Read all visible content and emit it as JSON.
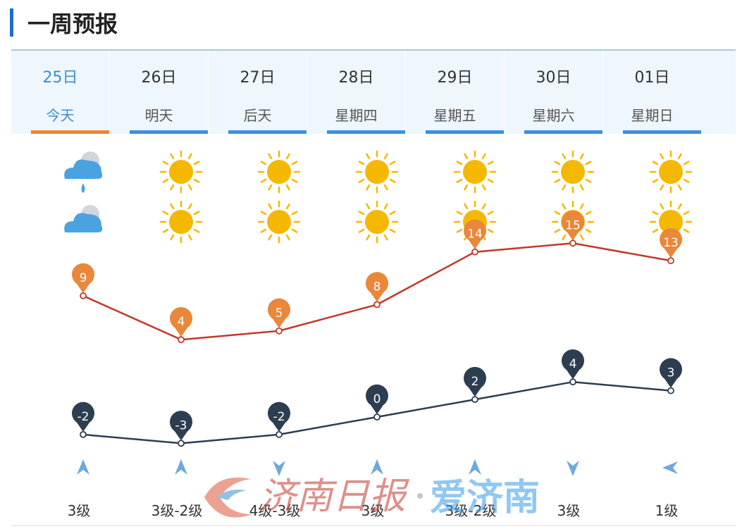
{
  "title": "一周预报",
  "days": [
    {
      "date": "25日",
      "label": "今天",
      "day_icon": "cloud-rain-icon",
      "night_icon": "cloud-icon",
      "high": "9",
      "low": "-2",
      "wind_dir": "arrow-up-icon",
      "wind": "3级"
    },
    {
      "date": "26日",
      "label": "明天",
      "day_icon": "sun-icon",
      "night_icon": "sun-icon",
      "high": "4",
      "low": "-3",
      "wind_dir": "arrow-up-icon",
      "wind": "3级-2级"
    },
    {
      "date": "27日",
      "label": "后天",
      "day_icon": "sun-icon",
      "night_icon": "sun-icon",
      "high": "5",
      "low": "-2",
      "wind_dir": "arrow-down-icon",
      "wind": "4级-3级"
    },
    {
      "date": "28日",
      "label": "星期四",
      "day_icon": "sun-icon",
      "night_icon": "sun-icon",
      "high": "8",
      "low": "0",
      "wind_dir": "arrow-up-icon",
      "wind": "3级"
    },
    {
      "date": "29日",
      "label": "星期五",
      "day_icon": "sun-icon",
      "night_icon": "sun-icon",
      "high": "14",
      "low": "2",
      "wind_dir": "arrow-up-icon",
      "wind": "3级-2级"
    },
    {
      "date": "30日",
      "label": "星期六",
      "day_icon": "sun-icon",
      "night_icon": "sun-icon",
      "high": "15",
      "low": "4",
      "wind_dir": "arrow-down-icon",
      "wind": "3级"
    },
    {
      "date": "01日",
      "label": "星期日",
      "day_icon": "sun-icon",
      "night_icon": "sun-icon",
      "high": "13",
      "low": "3",
      "wind_dir": "arrow-left-icon",
      "wind": "1级"
    }
  ],
  "watermark": {
    "left_text": "济南日报",
    "right_text": "爱济南"
  },
  "colors": {
    "accent": "#1e6ec8",
    "today": "#3a8fcf",
    "today_bar": "#e9873a",
    "day_bar": "#3f8ee0",
    "high_line": "#c0392b",
    "high_marker": "#e9873a",
    "low_line": "#2c3e50",
    "low_marker": "#2c3e50",
    "wind_arrow": "#6fa8dc",
    "sun": "#f5b800",
    "cloud": "#4aa3e0"
  }
}
